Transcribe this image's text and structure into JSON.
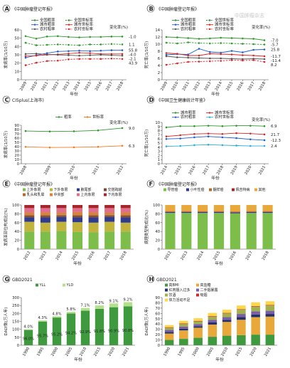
{
  "watermark": "中国肿瘤杂志",
  "colors": {
    "green": "#2e9a2e",
    "red": "#d62728",
    "blue": "#1f5fd0",
    "orange": "#f07c1f",
    "lightgreen": "#b5e08b",
    "yellow": "#e8a93a",
    "darkblue": "#23306a",
    "purple": "#7b5ea7",
    "olive": "#9fb34a",
    "grey": "#9a9a9a",
    "axis": "#444444"
  },
  "chart_data": [
    {
      "id": "A",
      "letter": "A",
      "type": "line",
      "title": "《中国肿瘤登记年报》",
      "xlabel": "年份",
      "ylabel": "发病率(1/10万)",
      "x": [
        2009,
        2010,
        2011,
        2012,
        2013,
        2014,
        2015,
        2016,
        2017,
        2018
      ],
      "ylim": [
        0,
        60
      ],
      "yticks": [
        0,
        10,
        20,
        30,
        40,
        50,
        60
      ],
      "change_label": "变化率(%)",
      "series": [
        {
          "name": "全国粗率",
          "values": [
            52.5,
            49.5,
            52.0,
            52.5,
            51.5,
            51.0,
            51.5,
            51.5,
            52.0,
            52.0
          ],
          "color": "#2e9a2e",
          "change": "-1.0"
        },
        {
          "name": "全国世标率",
          "values": [
            44.5,
            41.5,
            42.0,
            42.5,
            42.0,
            41.5,
            42.5,
            42.5,
            43.0,
            42.5
          ],
          "color": "#2e9a2e",
          "dashed": true,
          "change": "1.1"
        },
        {
          "name": "城市粗率",
          "values": [
            26.5,
            29.5,
            32.0,
            34.0,
            34.5,
            35.0,
            34.5,
            35.0,
            35.5,
            35.5
          ],
          "color": "#1f5fd0",
          "change": "55.8"
        },
        {
          "name": "城市世标率",
          "values": [
            28.5,
            29.0,
            30.0,
            30.5,
            31.5,
            32.5,
            32.0,
            31.0,
            31.0,
            31.0
          ],
          "color": "#d62728",
          "change": "-4.0"
        },
        {
          "name": "农村粗率",
          "values": [
            31.0,
            31.5,
            30.5,
            30.0,
            29.5,
            29.0,
            29.5,
            30.0,
            29.5,
            29.0
          ],
          "color": "#555555",
          "change": "-2.1"
        },
        {
          "name": "农村世标率",
          "values": [
            17.5,
            20.5,
            22.5,
            23.0,
            24.5,
            25.0,
            25.0,
            25.0,
            25.5,
            25.0
          ],
          "color": "#d62728",
          "dashed": true,
          "change": "43.9"
        }
      ]
    },
    {
      "id": "B",
      "letter": "B",
      "type": "line",
      "title": "《中国肿瘤登记年报》",
      "xlabel": "年份",
      "ylabel": "死亡率(1/10万)",
      "x": [
        2009,
        2010,
        2011,
        2012,
        2013,
        2014,
        2015,
        2016,
        2017,
        2018
      ],
      "ylim": [
        0,
        14
      ],
      "yticks": [
        0,
        2,
        4,
        6,
        8,
        10,
        12,
        14
      ],
      "change_label": "变化率(%)",
      "series": [
        {
          "name": "全国粗率",
          "values": [
            12.0,
            11.9,
            11.7,
            11.5,
            11.6,
            11.8,
            11.7,
            11.6,
            11.5,
            11.1
          ],
          "color": "#2e9a2e",
          "change": "-7.0"
        },
        {
          "name": "全国世标率",
          "values": [
            10.4,
            10.2,
            10.5,
            10.3,
            10.2,
            10.3,
            10.2,
            10.1,
            10.0,
            9.9
          ],
          "color": "#2e9a2e",
          "dashed": true,
          "change": "-5.7"
        },
        {
          "name": "城市粗率",
          "values": [
            7.0,
            7.2,
            7.1,
            8.7,
            7.8,
            7.6,
            8.1,
            7.7,
            8.4,
            8.5
          ],
          "color": "#1f5fd0",
          "change": "25.8"
        },
        {
          "name": "城市世标率",
          "values": [
            7.5,
            7.3,
            6.8,
            6.8,
            7.3,
            7.2,
            7.1,
            6.9,
            6.8,
            6.6
          ],
          "color": "#d62728",
          "change": "-11.7"
        },
        {
          "name": "农村粗率",
          "values": [
            6.6,
            6.3,
            6.2,
            6.1,
            6.0,
            6.0,
            5.9,
            5.8,
            5.9,
            5.8
          ],
          "color": "#555555",
          "change": "-11.4"
        },
        {
          "name": "农村世标率",
          "values": [
            4.2,
            4.6,
            5.0,
            5.1,
            5.2,
            5.3,
            5.5,
            5.4,
            5.5,
            5.0
          ],
          "color": "#d62728",
          "dashed": true,
          "change": "8.2"
        }
      ]
    },
    {
      "id": "C",
      "letter": "C",
      "type": "line",
      "title": "CI5plus(上海市)",
      "xlabel": "年份",
      "ylabel": "发病率(1/10万)",
      "x": [
        2008,
        2009,
        2010,
        2011,
        2012
      ],
      "ylim": [
        0,
        90
      ],
      "yticks": [
        0,
        10,
        20,
        30,
        40,
        50,
        60,
        70,
        80,
        90
      ],
      "change_label": "变化率(%)",
      "series": [
        {
          "name": "粗率",
          "values": [
            76.5,
            75.5,
            76.0,
            78.0,
            83.5
          ],
          "color": "#2e9a2e",
          "change": "9.0"
        },
        {
          "name": "世标率",
          "values": [
            39.5,
            38.0,
            38.5,
            39.5,
            42.0
          ],
          "color": "#f07c1f",
          "change": "6.3"
        }
      ]
    },
    {
      "id": "D",
      "letter": "D",
      "type": "line",
      "title": "《中国卫生健康统计年鉴》",
      "xlabel": "年份",
      "ylabel": "死亡率(1/10万)",
      "x": [
        2014,
        2015,
        2016,
        2017,
        2018,
        2019,
        2020,
        2021
      ],
      "ylim": [
        0,
        10
      ],
      "yticks": [
        0,
        1,
        2,
        3,
        4,
        5,
        6,
        7,
        8,
        9,
        10
      ],
      "change_label": "变化率(%)",
      "series": [
        {
          "name": "城市粗率",
          "values": [
            8.8,
            9.1,
            9.1,
            9.2,
            9.1,
            9.2,
            9.2,
            9.1
          ],
          "color": "#2e9a2e",
          "change": "6.9"
        },
        {
          "name": "城市世标率",
          "values": [
            6.6,
            6.9,
            7.2,
            7.3,
            7.2,
            7.4,
            7.3,
            7.1
          ],
          "color": "#d62728",
          "change": "21.7"
        },
        {
          "name": "农村粗率",
          "values": [
            6.0,
            6.1,
            6.4,
            6.6,
            6.4,
            6.2,
            5.9,
            5.7
          ],
          "color": "#1f5fd0",
          "change": "-12.3"
        },
        {
          "name": "农村世标率",
          "values": [
            4.2,
            4.3,
            4.5,
            4.6,
            4.5,
            4.4,
            4.3,
            4.3
          ],
          "color": "#2ab0d8",
          "change": "2.4"
        }
      ]
    },
    {
      "id": "E",
      "letter": "E",
      "type": "bar",
      "title": "《中国肿瘤登记年报》",
      "xlabel": "年份",
      "ylabel": "发病亚部位构成比(%)",
      "categories": [
        "2012",
        "2013",
        "2014",
        "2015",
        "2016",
        "2017",
        "2018"
      ],
      "ylim": [
        0,
        100
      ],
      "yticks": [
        0,
        20,
        40,
        60,
        80,
        100
      ],
      "stacked": true,
      "series": [
        {
          "name": "上外象限",
          "color": "#7dbe4a",
          "values": [
            40,
            40,
            41,
            39,
            38,
            40,
            40
          ]
        },
        {
          "name": "下外象限",
          "color": "#c2b33c",
          "values": [
            22,
            20,
            21,
            22,
            22,
            22,
            20
          ]
        },
        {
          "name": "腋尾部",
          "color": "#2e3b8f",
          "values": [
            10,
            12,
            11,
            11,
            12,
            11,
            12
          ]
        },
        {
          "name": "交搭跨越",
          "color": "#7b4a36",
          "values": [
            3,
            3,
            3,
            3,
            3,
            3,
            3
          ]
        },
        {
          "name": "乳头和乳晕",
          "color": "#b26b2a",
          "values": [
            3,
            3,
            2,
            3,
            3,
            2,
            3
          ]
        },
        {
          "name": "中央部",
          "color": "#d9823b",
          "values": [
            5,
            5,
            5,
            6,
            5,
            5,
            5
          ]
        },
        {
          "name": "上内象限",
          "color": "#e06f8b",
          "values": [
            10,
            10,
            10,
            9,
            10,
            10,
            10
          ]
        },
        {
          "name": "下内象限",
          "color": "#a7242a",
          "values": [
            7,
            7,
            7,
            7,
            7,
            7,
            7
          ]
        }
      ]
    },
    {
      "id": "F",
      "letter": "F",
      "type": "bar",
      "title": "《中国肿瘤登记年报》",
      "xlabel": "年份",
      "ylabel": "病理类型构成比(%)",
      "categories": [
        "2012",
        "2013",
        "2014",
        "2015",
        "2016",
        "2017",
        "2018"
      ],
      "ylim": [
        0,
        100
      ],
      "yticks": [
        0,
        20,
        40,
        60,
        80,
        100
      ],
      "stacked": true,
      "series": [
        {
          "name": "导管癌",
          "color": "#7dbe4a",
          "values": [
            82,
            82,
            82,
            82,
            81,
            82,
            82
          ]
        },
        {
          "name": "小叶性癌",
          "color": "#2e3b8f",
          "values": [
            2,
            2,
            2,
            2,
            2,
            2,
            2
          ]
        },
        {
          "name": "髓样癌",
          "color": "#b26b2a",
          "values": [
            1,
            1,
            1,
            1,
            1,
            1,
            1
          ]
        },
        {
          "name": "佩吉特病",
          "color": "#a7242a",
          "values": [
            1,
            1,
            1,
            1,
            1,
            1,
            1
          ]
        },
        {
          "name": "其他",
          "color": "#e8a93a",
          "values": [
            14,
            14,
            14,
            14,
            15,
            14,
            14
          ]
        }
      ]
    },
    {
      "id": "G",
      "letter": "G",
      "type": "bar",
      "title": "GBD2021",
      "xlabel": "年份",
      "ylabel": "DALY数(万人年)",
      "categories": [
        "1990",
        "1995",
        "2000",
        "2005",
        "2010",
        "2015",
        "2020",
        "2021"
      ],
      "ylim": [
        0,
        300
      ],
      "yticks": [
        0,
        50,
        100,
        150,
        200,
        250,
        300
      ],
      "stacked": true,
      "series": [
        {
          "name": "YLL",
          "color": "#3f9a3f",
          "values": [
            96,
            149,
            174,
            200,
            217,
            229,
            239,
            245
          ]
        },
        {
          "name": "YLD",
          "color": "#b5e08b",
          "values": [
            4,
            7,
            8,
            10,
            17,
            21,
            24,
            26
          ]
        }
      ],
      "top_labels": [
        "4.0%",
        "4.3%",
        "4.8%",
        "5.8%",
        "7.1%",
        "8.2%",
        "9.1%",
        "9.2%"
      ],
      "inner_labels": [
        "96.0%",
        "95.7%",
        "95.2%",
        "94.2%",
        "92.9%",
        "91.8%",
        "90.9%",
        "90.8%"
      ]
    },
    {
      "id": "H",
      "letter": "H",
      "type": "bar",
      "title": "GBD2021",
      "xlabel": "年份",
      "ylabel": "DALY数(万人年)",
      "categories": [
        "1990",
        "1995",
        "2000",
        "2005",
        "2010",
        "2015",
        "2020",
        "2021"
      ],
      "ylim": [
        0,
        90
      ],
      "yticks": [
        0,
        10,
        20,
        30,
        40,
        50,
        60,
        70,
        80,
        90
      ],
      "stacked": true,
      "series": [
        {
          "name": "高BMI",
          "color": "#3f9a3f",
          "values": [
            10,
            12,
            14,
            16,
            18,
            19,
            20,
            20
          ]
        },
        {
          "name": "高血糖",
          "color": "#e8a93a",
          "values": [
            12,
            16,
            19,
            23,
            26,
            29,
            33,
            34
          ]
        },
        {
          "name": "红肉摄入过多",
          "color": "#23306a",
          "values": [
            3,
            3,
            3,
            4,
            4,
            5,
            5,
            5
          ]
        },
        {
          "name": "二手烟暴露",
          "color": "#7b5ea7",
          "values": [
            4,
            4,
            4,
            5,
            5,
            6,
            6,
            6
          ]
        },
        {
          "name": "饮酒",
          "color": "#9fb34a",
          "values": [
            4,
            5,
            5,
            6,
            7,
            8,
            9,
            10
          ]
        },
        {
          "name": "吸烟",
          "color": "#d62728",
          "values": [
            1,
            1,
            1,
            1,
            1,
            1,
            1,
            1
          ]
        },
        {
          "name": "体力活动不足",
          "color": "#ffd54a",
          "values": [
            4,
            5,
            5,
            6,
            6,
            7,
            7,
            7
          ]
        }
      ]
    }
  ]
}
